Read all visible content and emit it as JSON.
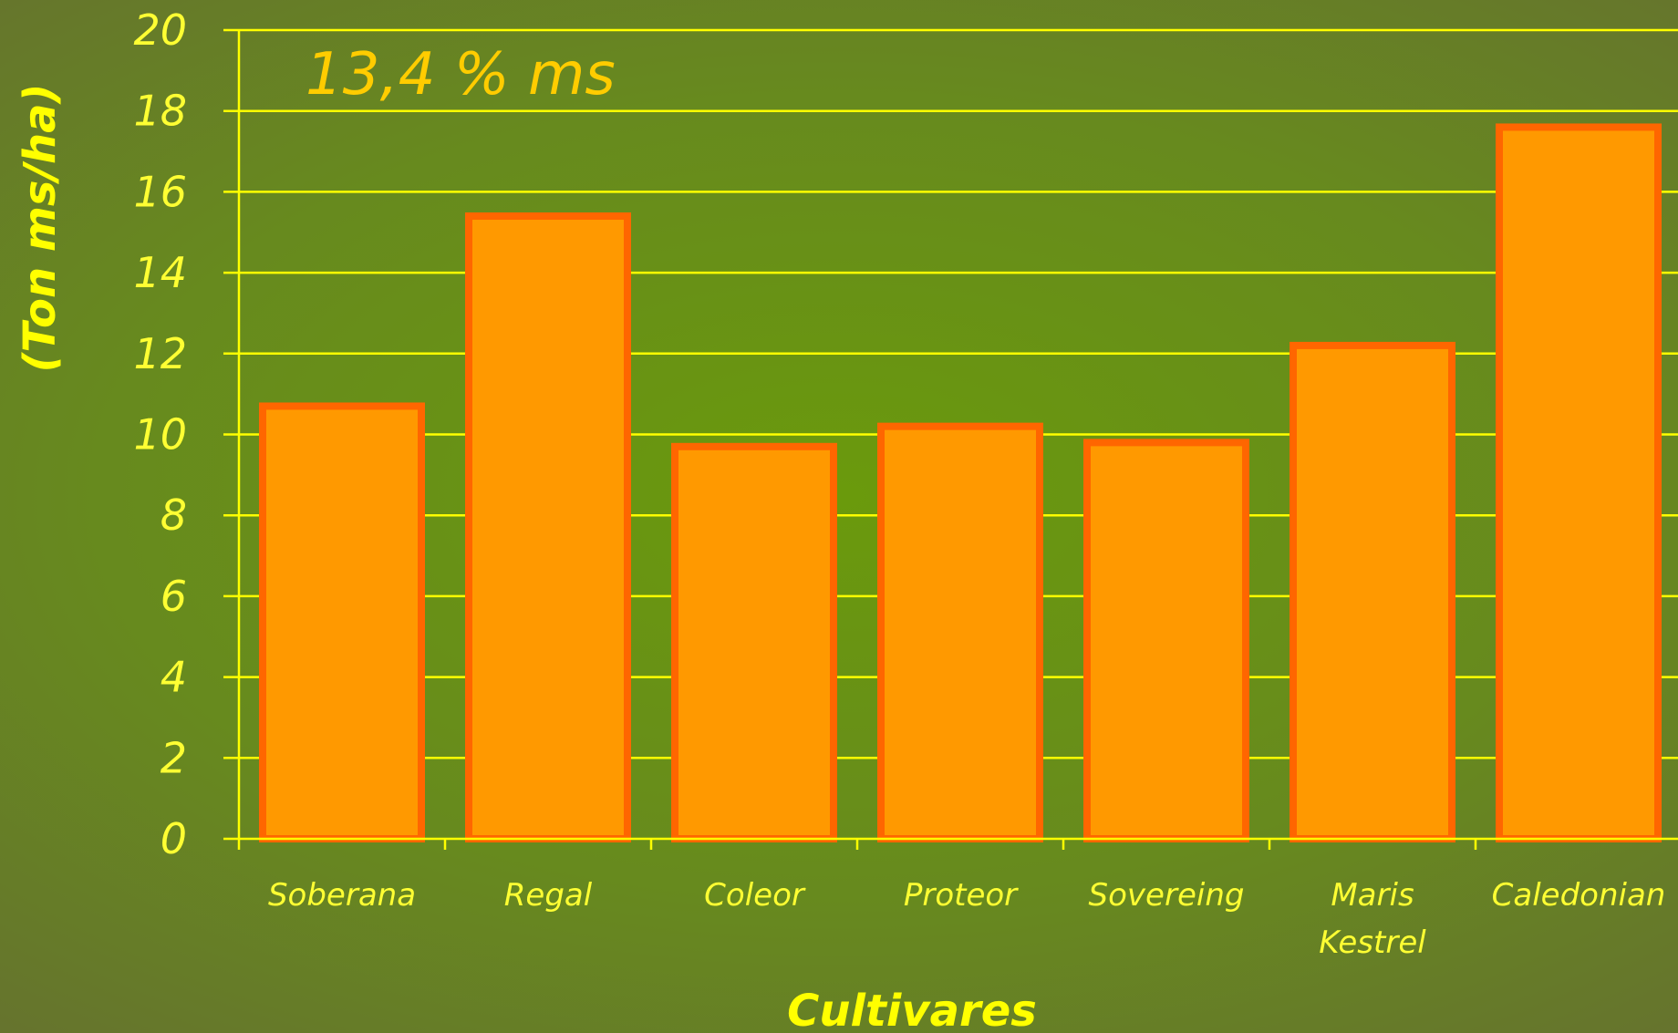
{
  "chart_data": {
    "type": "bar",
    "title": "",
    "annotation": "13,4 % ms",
    "xlabel": "Cultivares",
    "ylabel": "(Ton ms/ha)",
    "ylim": [
      0,
      20
    ],
    "yticks": [
      "0",
      "2",
      "4",
      "6",
      "8",
      "10",
      "12",
      "14",
      "16",
      "18",
      "20"
    ],
    "categories": [
      [
        "Soberana"
      ],
      [
        "Regal"
      ],
      [
        "Coleor"
      ],
      [
        "Proteor"
      ],
      [
        "Sovereing"
      ],
      [
        "Maris",
        "Kestrel"
      ],
      [
        "Caledonian"
      ]
    ],
    "values": [
      10.7,
      15.4,
      9.7,
      10.2,
      9.8,
      12.2,
      17.6
    ],
    "grid": true,
    "legend": "none",
    "colors": {
      "bar_fill": "#ff9900",
      "bar_stroke": "#ff6600",
      "grid": "#ffff00",
      "text": "#ffff33",
      "annotation": "#ffcc00"
    }
  }
}
